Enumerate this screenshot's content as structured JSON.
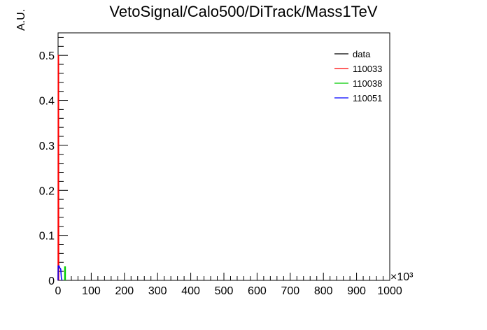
{
  "chart_data": {
    "type": "line",
    "title": "VetoSignal/Calo500/DiTrack/Mass1TeV",
    "xlabel": "",
    "ylabel": "A.U.",
    "x_multiplier": "×10³",
    "xlim": [
      0,
      1000
    ],
    "ylim": [
      0,
      0.55
    ],
    "x_ticks": [
      "0",
      "100",
      "200",
      "300",
      "400",
      "500",
      "600",
      "700",
      "800",
      "900",
      "1000"
    ],
    "y_ticks": [
      "0",
      "0.1",
      "0.2",
      "0.3",
      "0.4",
      "0.5"
    ],
    "grid": false,
    "legend_position": "top-right",
    "series": [
      {
        "name": "data",
        "color": "#000000",
        "points": []
      },
      {
        "name": "110033",
        "color": "#ff0000",
        "points": [
          [
            0,
            0
          ],
          [
            0.5,
            0.5
          ],
          [
            1.5,
            0.5
          ],
          [
            2,
            0
          ]
        ]
      },
      {
        "name": "110038",
        "color": "#00cc00",
        "points": [
          [
            20,
            0
          ],
          [
            20,
            0.03
          ],
          [
            22,
            0.03
          ],
          [
            22,
            0
          ]
        ]
      },
      {
        "name": "110051",
        "color": "#0000ff",
        "points": [
          [
            0,
            0
          ],
          [
            0.5,
            0.032
          ],
          [
            3,
            0.032
          ],
          [
            5,
            0.028
          ],
          [
            8,
            0.025
          ],
          [
            10,
            0.005
          ],
          [
            12,
            0
          ]
        ]
      }
    ]
  }
}
